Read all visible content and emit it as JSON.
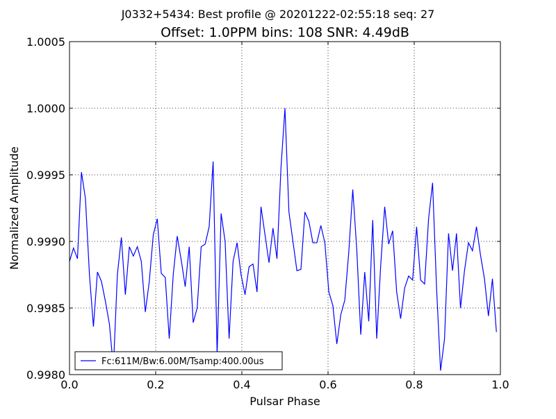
{
  "figure": {
    "suptitle": "J0332+5434: Best profile @ 20201222-02:55:18 seq: 27",
    "title": "Offset: 1.0PPM bins: 108 SNR:  4.49dB"
  },
  "chart_data": {
    "type": "line",
    "title": "Offset: 1.0PPM bins: 108 SNR:  4.49dB",
    "xlabel": "Pulsar Phase",
    "ylabel": "Normalized Amplitude",
    "xlim": [
      0.0,
      1.0
    ],
    "ylim": [
      0.998,
      1.0005
    ],
    "x_ticks": [
      0.0,
      0.2,
      0.4,
      0.6,
      0.8,
      1.0
    ],
    "x_tick_labels": [
      "0.0",
      "0.2",
      "0.4",
      "0.6",
      "0.8",
      "1.0"
    ],
    "y_ticks": [
      0.998,
      0.9985,
      0.999,
      0.9995,
      1.0,
      1.0005
    ],
    "y_tick_labels": [
      "0.9980",
      "0.9985",
      "0.9990",
      "0.9995",
      "1.0000",
      "1.0005"
    ],
    "grid": true,
    "legend_position": "lower-left",
    "series": [
      {
        "name": "Fc:611M/Bw:6.00M/Tsamp:400.00us",
        "color": "#0000ff",
        "y": [
          0.99885,
          0.99895,
          0.99887,
          0.99952,
          0.99932,
          0.99875,
          0.99836,
          0.99877,
          0.9987,
          0.99855,
          0.99838,
          0.99805,
          0.99875,
          0.99903,
          0.9986,
          0.99896,
          0.99889,
          0.99896,
          0.99885,
          0.99847,
          0.9987,
          0.99905,
          0.99917,
          0.99876,
          0.99873,
          0.99827,
          0.99875,
          0.99904,
          0.99886,
          0.99866,
          0.99896,
          0.99839,
          0.9985,
          0.99896,
          0.99898,
          0.99911,
          0.9996,
          0.99815,
          0.99921,
          0.999,
          0.99827,
          0.99885,
          0.99899,
          0.99875,
          0.9986,
          0.99881,
          0.99883,
          0.99862,
          0.99926,
          0.99905,
          0.99884,
          0.9991,
          0.99887,
          0.99955,
          1.0,
          0.99922,
          0.999,
          0.99878,
          0.99879,
          0.99922,
          0.99915,
          0.99899,
          0.99899,
          0.99912,
          0.99899,
          0.99862,
          0.99852,
          0.99823,
          0.99845,
          0.99856,
          0.99892,
          0.99939,
          0.99894,
          0.9983,
          0.99877,
          0.9984,
          0.99916,
          0.99827,
          0.99882,
          0.99926,
          0.99898,
          0.99908,
          0.99862,
          0.99842,
          0.99865,
          0.99874,
          0.99871,
          0.99911,
          0.99871,
          0.99868,
          0.99917,
          0.99944,
          0.99865,
          0.99803,
          0.99827,
          0.99906,
          0.99878,
          0.99906,
          0.9985,
          0.99878,
          0.99899,
          0.99893,
          0.99911,
          0.9989,
          0.99872,
          0.99844,
          0.99872,
          0.99832
        ]
      }
    ]
  }
}
